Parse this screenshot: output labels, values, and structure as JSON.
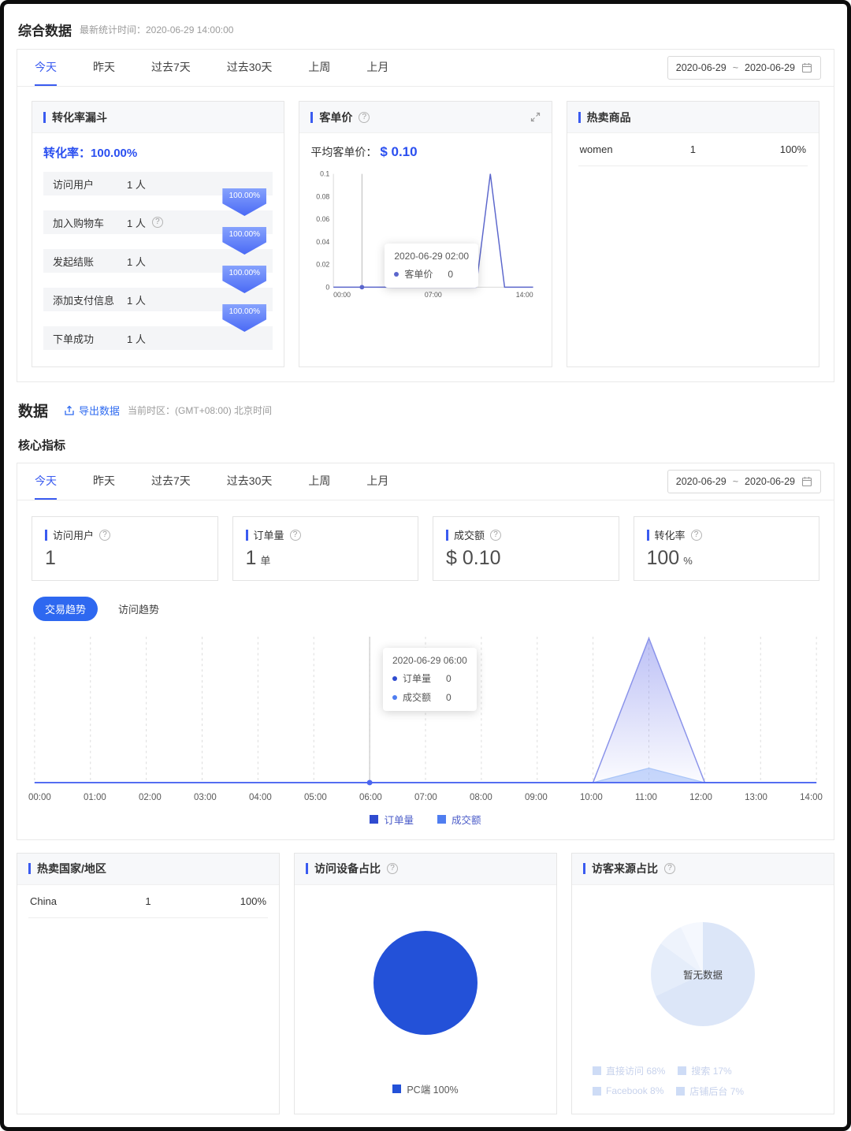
{
  "icons": {
    "help": "?"
  },
  "colors": {
    "primary": "#3a5bf0",
    "aov_line": "#5b66cc",
    "trend_order_fill": "#7a82ec",
    "trend_amount_fill": "#9db9f7",
    "baseline_blue": "#4c66f0",
    "legend_order": "#2f4bd0",
    "legend_amount": "#4f7df0",
    "pie_device": "#2351d8",
    "pie_empty_palette": [
      "#dce6f8",
      "#e5edfa",
      "#eef3fc",
      "#f5f8fe"
    ]
  },
  "overview": {
    "title": "综合数据",
    "subtitle": "最新统计时间：2020-06-29 14:00:00",
    "tabs": [
      "今天",
      "昨天",
      "过去7天",
      "过去30天",
      "上周",
      "上月"
    ],
    "active_tab": "今天",
    "date_range": {
      "start": "2020-06-29",
      "separator": "~",
      "end": "2020-06-29"
    }
  },
  "funnel": {
    "title": "转化率漏斗",
    "rate_label": "转化率：",
    "rate_value": "100.00%",
    "steps": [
      {
        "label": "访问用户",
        "value": "1 人",
        "has_help": false
      },
      {
        "label": "加入购物车",
        "value": "1 人",
        "has_help": true
      },
      {
        "label": "发起结账",
        "value": "1 人",
        "has_help": false
      },
      {
        "label": "添加支付信息",
        "value": "1 人",
        "has_help": false
      },
      {
        "label": "下单成功",
        "value": "1 人",
        "has_help": false
      }
    ],
    "arrow_values": [
      "100.00%",
      "100.00%",
      "100.00%",
      "100.00%"
    ]
  },
  "aov": {
    "title": "客单价",
    "avg_label": "平均客单价：",
    "avg_value": "$ 0.10"
  },
  "hot_products": {
    "title": "热卖商品",
    "rows": [
      {
        "name": "women",
        "count": "1",
        "percent": "100%"
      }
    ]
  },
  "data_section": {
    "title": "数据",
    "export_label": "导出数据",
    "timezone": "当前时区：(GMT+08:00) 北京时间"
  },
  "core": {
    "title": "核心指标",
    "tabs": [
      "今天",
      "昨天",
      "过去7天",
      "过去30天",
      "上周",
      "上月"
    ],
    "active_tab": "今天",
    "date_range": {
      "start": "2020-06-29",
      "separator": "~",
      "end": "2020-06-29"
    },
    "cards": [
      {
        "label": "访问用户",
        "value": "1",
        "unit": ""
      },
      {
        "label": "订单量",
        "value": "1",
        "unit": "单"
      },
      {
        "label": "成交额",
        "value": "$ 0.10",
        "unit": ""
      },
      {
        "label": "转化率",
        "value": "100",
        "unit": "%"
      }
    ]
  },
  "trend": {
    "toggles": [
      "交易趋势",
      "访问趋势"
    ],
    "active": "交易趋势",
    "legend": [
      {
        "label": "订单量",
        "color": "#2f4bd0"
      },
      {
        "label": "成交额",
        "color": "#4f7df0"
      }
    ]
  },
  "hot_countries": {
    "title": "热卖国家/地区",
    "rows": [
      {
        "name": "China",
        "count": "1",
        "percent": "100%"
      }
    ]
  },
  "devices": {
    "title": "访问设备占比",
    "legend": [
      {
        "label": "PC端 100%",
        "color": "#2351d8"
      }
    ]
  },
  "sources": {
    "title": "访客来源占比",
    "empty_text": "暂无数据",
    "legend": [
      {
        "label": "直接访问 68%"
      },
      {
        "label": "搜索 17%"
      },
      {
        "label": "Facebook 8%"
      },
      {
        "label": "店铺后台 7%"
      }
    ]
  },
  "chart_data": [
    {
      "id": "aov_trend",
      "type": "line",
      "title": "客单价",
      "x": [
        "00:00",
        "01:00",
        "02:00",
        "03:00",
        "04:00",
        "05:00",
        "06:00",
        "07:00",
        "08:00",
        "09:00",
        "10:00",
        "11:00",
        "12:00",
        "13:00",
        "14:00"
      ],
      "x_axis_labels": [
        "00:00",
        "07:00",
        "14:00"
      ],
      "y_ticks": [
        0,
        0.02,
        0.04,
        0.06,
        0.08,
        0.1
      ],
      "ylim": [
        0,
        0.1
      ],
      "grid": "off",
      "series": [
        {
          "name": "客单价",
          "values": [
            0,
            0,
            0,
            0,
            0,
            0,
            0,
            0,
            0,
            0,
            0,
            0.1,
            0,
            0,
            0
          ]
        }
      ],
      "hover_index": 2,
      "tooltip": {
        "title": "2020-06-29 02:00",
        "items": [
          {
            "name": "客单价",
            "value": "0"
          }
        ]
      }
    },
    {
      "id": "trade_trend",
      "type": "area",
      "x": [
        "00:00",
        "01:00",
        "02:00",
        "03:00",
        "04:00",
        "05:00",
        "06:00",
        "07:00",
        "08:00",
        "09:00",
        "10:00",
        "11:00",
        "12:00",
        "13:00",
        "14:00"
      ],
      "ylim": [
        0,
        1
      ],
      "grid": "dashed-vertical",
      "legend_position": "bottom",
      "series": [
        {
          "name": "订单量",
          "values": [
            0,
            0,
            0,
            0,
            0,
            0,
            0,
            0,
            0,
            0,
            0,
            1,
            0,
            0,
            0
          ]
        },
        {
          "name": "成交额",
          "values": [
            0,
            0,
            0,
            0,
            0,
            0,
            0,
            0,
            0,
            0,
            0,
            0.1,
            0,
            0,
            0
          ]
        }
      ],
      "hover_index": 6,
      "tooltip": {
        "title": "2020-06-29 06:00",
        "items": [
          {
            "name": "订单量",
            "value": "0"
          },
          {
            "name": "成交额",
            "value": "0"
          }
        ]
      }
    },
    {
      "id": "device_pie",
      "type": "pie",
      "title": "访问设备占比",
      "slices": [
        {
          "label": "PC端",
          "value": 100
        }
      ]
    },
    {
      "id": "source_pie",
      "type": "pie",
      "title": "访客来源占比",
      "empty": true,
      "empty_text": "暂无数据",
      "slices": [
        {
          "label": "直接访问",
          "value": 68
        },
        {
          "label": "搜索",
          "value": 17
        },
        {
          "label": "Facebook",
          "value": 8
        },
        {
          "label": "店铺后台",
          "value": 7
        }
      ]
    }
  ]
}
